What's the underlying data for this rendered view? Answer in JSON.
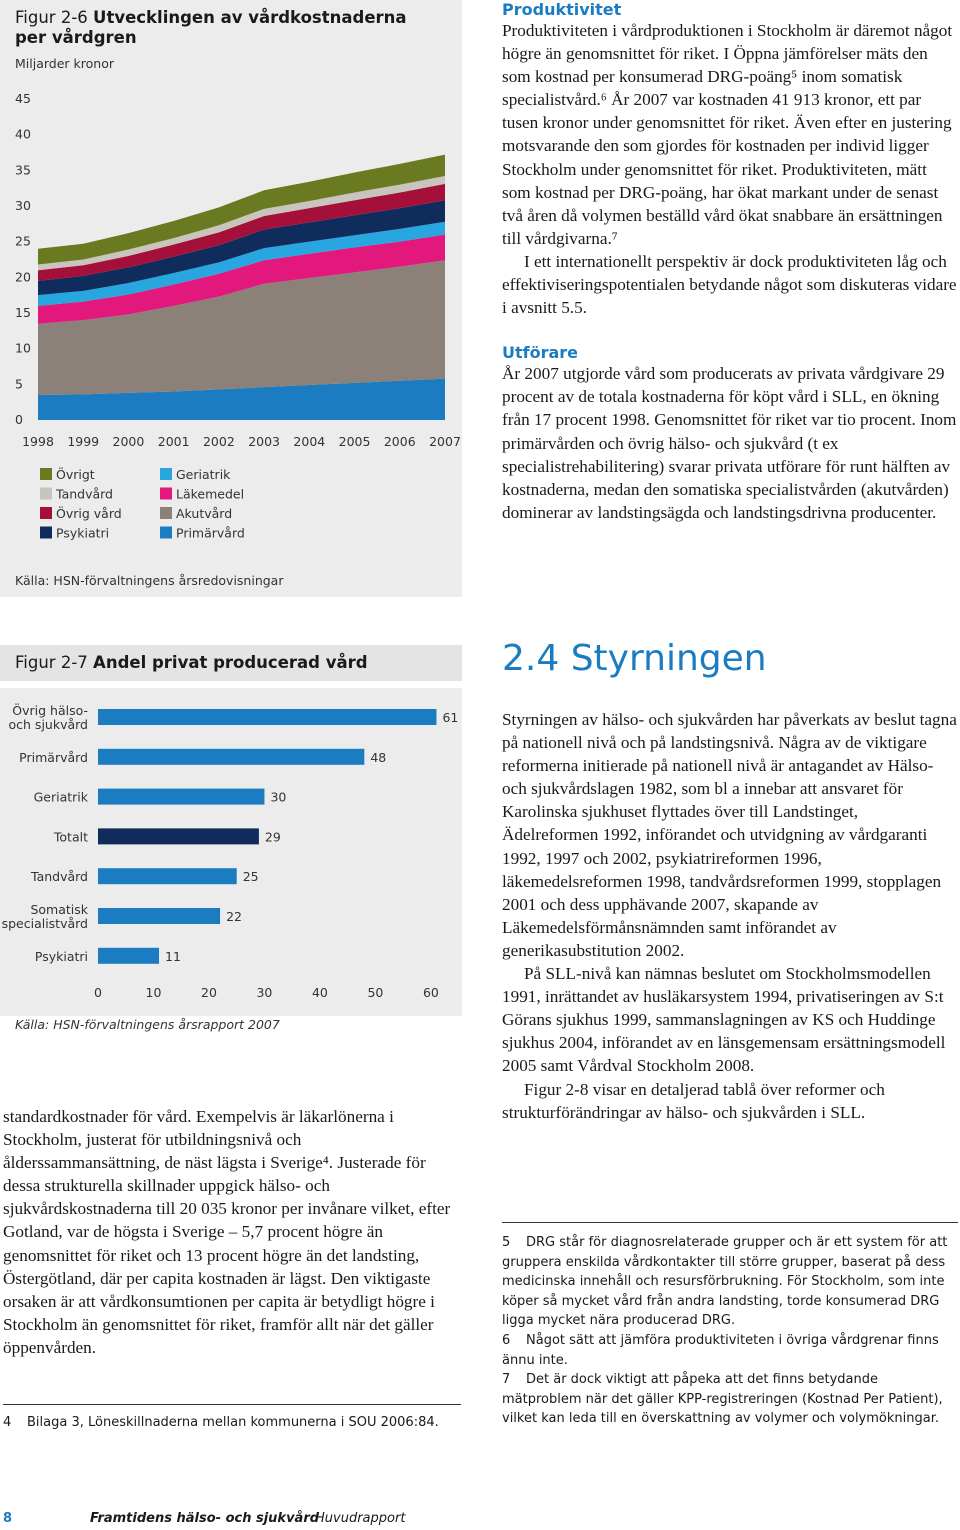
{
  "chart_data": [
    {
      "type": "stacked-area",
      "figure_label": "Figur 2-6",
      "title": "Utvecklingen av vårdkostnaderna per vårdgren",
      "subtitle": "Miljarder kronor",
      "source": "Källa: HSN-förvaltningens årsredovisningar",
      "categories": [
        "1998",
        "1999",
        "2000",
        "2001",
        "2002",
        "2003",
        "2004",
        "2005",
        "2006",
        "2007"
      ],
      "ylim": [
        0,
        45
      ],
      "yticks": [
        0,
        5,
        10,
        15,
        20,
        25,
        30,
        35,
        40,
        45
      ],
      "series": [
        {
          "name": "Primärvård",
          "color": "#1b7cc1",
          "values": [
            3.5,
            3.6,
            3.8,
            4.0,
            4.3,
            4.6,
            4.9,
            5.2,
            5.5,
            5.8
          ]
        },
        {
          "name": "Akutvård",
          "color": "#8b8178",
          "values": [
            10.0,
            10.4,
            11.0,
            12.0,
            13.0,
            14.5,
            15.0,
            15.5,
            16.0,
            16.6
          ]
        },
        {
          "name": "Läkemedel",
          "color": "#e2187c",
          "values": [
            2.5,
            2.6,
            2.8,
            3.0,
            3.2,
            3.3,
            3.4,
            3.5,
            3.5,
            3.6
          ]
        },
        {
          "name": "Geriatrik",
          "color": "#27a6df",
          "values": [
            1.5,
            1.5,
            1.6,
            1.6,
            1.6,
            1.7,
            1.7,
            1.7,
            1.8,
            1.8
          ]
        },
        {
          "name": "Psykiatri",
          "color": "#0f2c5c",
          "values": [
            2.0,
            2.1,
            2.2,
            2.3,
            2.4,
            2.6,
            2.7,
            2.8,
            2.9,
            3.0
          ]
        },
        {
          "name": "Övrig vård",
          "color": "#a5103b",
          "values": [
            1.5,
            1.5,
            1.6,
            1.7,
            1.8,
            1.9,
            2.0,
            2.1,
            2.2,
            2.3
          ]
        },
        {
          "name": "Tandvård",
          "color": "#c9c4be",
          "values": [
            0.8,
            0.8,
            0.9,
            0.9,
            1.0,
            1.0,
            1.0,
            1.1,
            1.1,
            1.1
          ]
        },
        {
          "name": "Övrigt",
          "color": "#6a7a21",
          "values": [
            2.2,
            2.2,
            2.3,
            2.4,
            2.5,
            2.6,
            2.7,
            2.8,
            2.9,
            3.0
          ]
        }
      ]
    },
    {
      "type": "hbar",
      "figure_label": "Figur 2-7",
      "title": "Andel privat producerad vård",
      "source": "Källa: HSN-förvaltningens årsrapport 2007",
      "categories": [
        "Övrig hälso- och sjukvård",
        "Primärvård",
        "Geriatrik",
        "Totalt",
        "Tandvård",
        "Somatisk specialistvård",
        "Psykiatri"
      ],
      "values": [
        61,
        48,
        30,
        29,
        25,
        22,
        11
      ],
      "colors": [
        "#1b7cc1",
        "#1b7cc1",
        "#1b7cc1",
        "#0f2c5c",
        "#1b7cc1",
        "#1b7cc1",
        "#1b7cc1"
      ],
      "xlim": [
        0,
        62
      ],
      "xticks": [
        0,
        10,
        20,
        30,
        40,
        50,
        60
      ]
    }
  ],
  "right_column": {
    "heading1": "Produktivitet",
    "para1": "Produktiviteten i vårdproduktionen i Stockholm är däremot något högre än genomsnittet för riket. I Öppna jämförelser mäts den som kostnad per konsumerad DRG-poäng⁵ inom somatisk specialistvård.⁶ År 2007 var kostnaden 41 913 kronor, ett par tusen kronor under genomsnittet för riket. Även efter en justering motsvarande den som gjordes för kostnaden per individ ligger Stockholm under genomsnittet för riket. Produktiviteten, mätt som kostnad per DRG-poäng, har ökat markant under de senast två åren då volymen beställd vård ökat snabbare än ersättningen till vårdgivarna.⁷",
    "para2": "I ett internationellt perspektiv är dock produktiviteten låg och effektiviseringspotentialen betydande något som diskuteras vidare i avsnitt 5.5.",
    "heading2": "Utförare",
    "para3": "År 2007 utgjorde vård som producerats av privata vårdgivare 29 procent av de totala kostnaderna för köpt vård i SLL, en ökning från 17 procent 1998. Genomsnittet för riket var tio procent. Inom primärvården och övrig hälso- och sjukvård (t ex specialistrehabilitering) svarar privata utförare för runt hälften av kostnaderna, medan den somatiska specialistvården (akutvården) dominerar av landstingsägda och landstingsdrivna producenter.",
    "section_title": "2.4 Styrningen",
    "para4": "Styrningen av hälso- och sjukvården har påverkats av beslut tagna på nationell nivå och på landstingsnivå. Några av de viktigare reformerna initierade på nationell nivå är antagandet av Hälso- och sjukvårdslagen 1982, som bl a innebar att ansvaret för Karolinska sjukhuset flyttades över till Landstinget, Ädelreformen 1992, införandet och utvidgning av vårdgaranti 1992, 1997 och 2002, psykiatrireformen 1996, läkemedelsreformen 1998, tandvårdsreformen 1999, stopplagen 2001 och dess upphävande 2007, skapande av Läkemedelsförmånsnämnden samt införandet av generikasubstitution 2002.",
    "para5": "På SLL-nivå kan nämnas beslutet om Stockholmsmodellen 1991, inrättandet av husläkarsystem 1994, privatiseringen av S:t Görans sjukhus 1999, sammanslagningen av KS och Huddinge sjukhus 2004, införandet av en länsgemensam ersättningsmodell 2005 samt Vårdval Stockholm 2008.",
    "para6": "Figur 2-8 visar en detaljerad tablå över reformer och strukturförändringar av hälso- och sjukvården i SLL.",
    "footnotes": [
      {
        "number": "5",
        "text": "DRG står för diagnosrelaterade grupper och är ett system för att gruppera enskilda vårdkontakter till större grupper, baserat på dess medicinska innehåll och resursförbrukning. För Stockholm, som inte köper så mycket vård från andra landsting, torde konsumerad DRG ligga mycket nära producerad DRG."
      },
      {
        "number": "6",
        "text": "Något sätt att jämföra produktiviteten i övriga vårdgrenar finns ännu inte."
      },
      {
        "number": "7",
        "text": "Det är dock viktigt att påpeka att det finns betydande mätproblem när det gäller KPP-registreringen (Kostnad Per Patient), vilket kan leda till en överskattning av volymer och volymökningar."
      }
    ]
  },
  "left_column": {
    "para": "standardkostnader för vård. Exempelvis är läkarlönerna i Stockholm, justerat för utbildningsnivå och ålderssammansättning, de näst lägsta i Sverige⁴. Justerade för dessa strukturella skillnader uppgick hälso- och sjukvårdskostnaderna till 20 035 kronor per invånare vilket, efter Gotland, var de högsta i Sverige – 5,7 procent högre än genomsnittet för riket och 13 procent högre än det landsting, Östergötland, där per capita kostnaden är lägst. Den viktigaste orsaken är att vårdkonsumtionen per capita är betydligt högre i Stockholm än genomsnittet för riket, framför allt när det gäller öppenvården.",
    "footnote": {
      "number": "4",
      "text": "Bilaga 3, Löneskillnaderna mellan kommunerna i SOU 2006:84."
    }
  },
  "footer": {
    "page": "8",
    "title": "Framtidens hälso- och sjukvård",
    "subtitle": "Huvudrapport"
  }
}
